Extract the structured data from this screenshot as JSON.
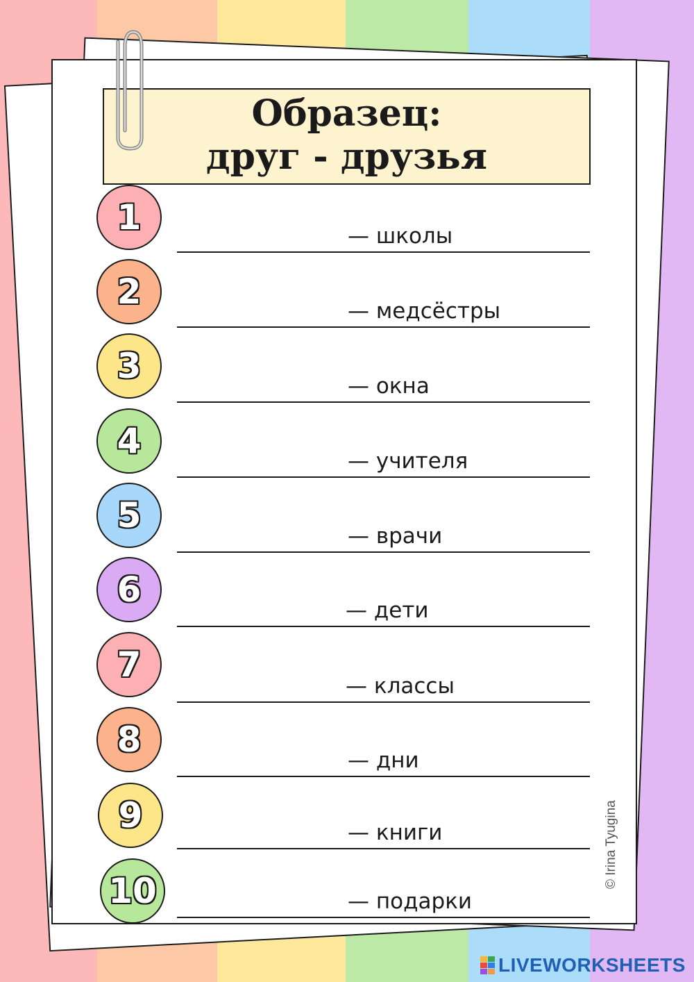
{
  "worksheet": {
    "title_line1": "Образец:",
    "title_line2": "друг - друзья",
    "items": [
      {
        "number": "1",
        "word": "— школы",
        "color": "#fdb0b3"
      },
      {
        "number": "2",
        "word": "— медсёстры",
        "color": "#fcb28a"
      },
      {
        "number": "3",
        "word": "— окна",
        "color": "#fde58a"
      },
      {
        "number": "4",
        "word": "— учителя",
        "color": "#b6e79a"
      },
      {
        "number": "5",
        "word": "— врачи",
        "color": "#a7d8fb"
      },
      {
        "number": "6",
        "word": "— дети",
        "color": "#dbaaf5"
      },
      {
        "number": "7",
        "word": "— классы",
        "color": "#fdb0b3"
      },
      {
        "number": "8",
        "word": "— дни",
        "color": "#fcb28a"
      },
      {
        "number": "9",
        "word": "— книги",
        "color": "#fde58a"
      },
      {
        "number": "10",
        "word": "— подарки",
        "color": "#b6e79a"
      }
    ],
    "copyright": "© Irina Tyugina"
  },
  "brand": {
    "name": "LIVEWORKSHEETS",
    "logo_icon": "liveworksheets-logo-icon"
  }
}
